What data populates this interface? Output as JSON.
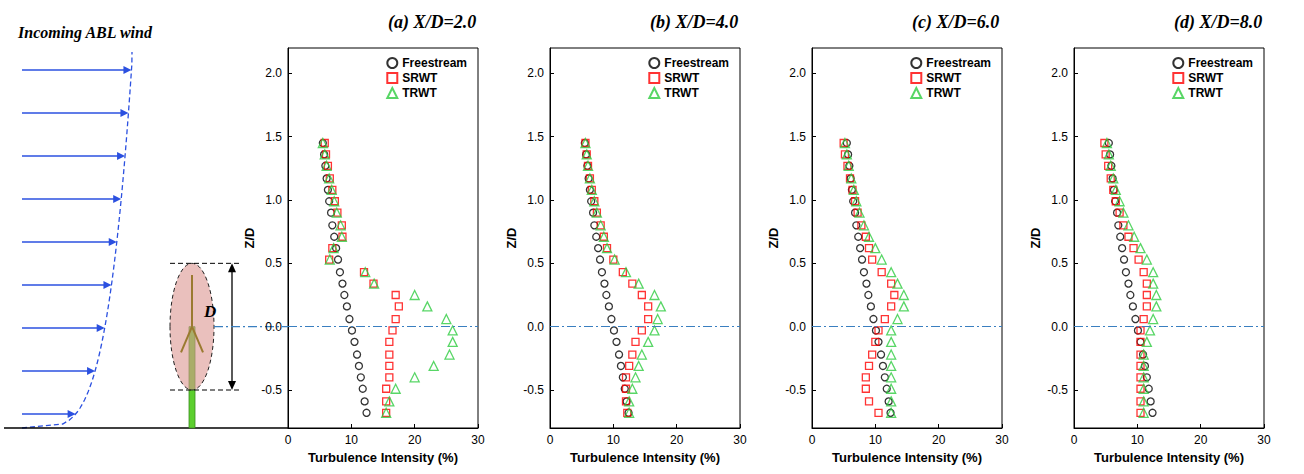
{
  "chart_data": [
    {
      "type": "scatter",
      "title": "(a) X/D=2.0",
      "x_label": "Turbulence Intensity (%)",
      "y_label": "Z/D",
      "xlim": [
        0,
        30
      ],
      "xticks": [
        0,
        10,
        20,
        30
      ],
      "ylim": [
        -0.8,
        2.2
      ],
      "yticks": [
        -0.5,
        {
          "value": 0,
          "label": "0.0"
        },
        0.5,
        {
          "value": 1,
          "label": "1.0"
        },
        1.5,
        {
          "value": 2,
          "label": "2.0"
        }
      ],
      "grid": false,
      "legend": "upper right",
      "hline": 0,
      "y": [
        1.45,
        1.36,
        1.27,
        1.17,
        1.08,
        0.99,
        0.9,
        0.8,
        0.71,
        0.62,
        0.53,
        0.43,
        0.34,
        0.25,
        0.16,
        0.06,
        -0.03,
        -0.12,
        -0.22,
        -0.31,
        -0.4,
        -0.49,
        -0.59,
        -0.68
      ],
      "series": [
        {
          "name": "Freestream",
          "color": "#000000",
          "marker": "circle",
          "x": [
            5.5,
            5.7,
            5.9,
            6.1,
            6.3,
            6.5,
            6.8,
            7.0,
            7.3,
            7.6,
            7.9,
            8.2,
            8.6,
            8.9,
            9.3,
            9.7,
            10.1,
            10.5,
            10.9,
            11.2,
            11.5,
            11.8,
            12.1,
            12.4
          ]
        },
        {
          "name": "SRWT",
          "color": "#ff0000",
          "marker": "square",
          "x": [
            5.8,
            6.0,
            6.3,
            6.6,
            7.0,
            7.4,
            7.8,
            8.5,
            8.6,
            7.0,
            6.5,
            12.0,
            13.5,
            17.0,
            17.5,
            17.0,
            16.5,
            16.0,
            16.0,
            16.0,
            16.0,
            15.5,
            15.5,
            15.5
          ]
        },
        {
          "name": "TRWT",
          "color": "#2ecc40",
          "marker": "triangle",
          "x": [
            5.5,
            5.8,
            6.1,
            6.5,
            6.9,
            7.3,
            7.7,
            8.3,
            8.5,
            7.2,
            6.6,
            12.2,
            13.6,
            20.0,
            22.0,
            25.0,
            26.0,
            26.0,
            25.5,
            23.0,
            20.0,
            17.0,
            16.0,
            15.5
          ]
        }
      ]
    },
    {
      "type": "scatter",
      "title": "(b) X/D=4.0",
      "x_label": "Turbulence Intensity (%)",
      "y_label": "Z/D",
      "xlim": [
        0,
        30
      ],
      "xticks": [
        0,
        10,
        20,
        30
      ],
      "ylim": [
        -0.8,
        2.2
      ],
      "yticks": [
        -0.5,
        {
          "value": 0,
          "label": "0.0"
        },
        0.5,
        {
          "value": 1,
          "label": "1.0"
        },
        1.5,
        {
          "value": 2,
          "label": "2.0"
        }
      ],
      "grid": false,
      "legend": "upper right",
      "hline": 0,
      "y": [
        1.45,
        1.36,
        1.27,
        1.17,
        1.08,
        0.99,
        0.9,
        0.8,
        0.71,
        0.62,
        0.53,
        0.43,
        0.34,
        0.25,
        0.16,
        0.06,
        -0.03,
        -0.12,
        -0.22,
        -0.31,
        -0.4,
        -0.49,
        -0.59,
        -0.68
      ],
      "series": [
        {
          "name": "Freestream",
          "color": "#000000",
          "marker": "circle",
          "x": [
            5.5,
            5.7,
            5.9,
            6.1,
            6.3,
            6.5,
            6.8,
            7.0,
            7.3,
            7.6,
            7.9,
            8.2,
            8.6,
            8.9,
            9.3,
            9.7,
            10.1,
            10.5,
            10.9,
            11.2,
            11.5,
            11.8,
            12.1,
            12.4
          ]
        },
        {
          "name": "SRWT",
          "color": "#ff0000",
          "marker": "square",
          "x": [
            5.6,
            5.8,
            6.0,
            6.3,
            6.6,
            7.0,
            7.4,
            8.0,
            8.5,
            9.0,
            10.0,
            11.5,
            13.0,
            14.5,
            15.5,
            15.5,
            14.5,
            13.5,
            13.0,
            12.5,
            12.0,
            12.0,
            12.0,
            12.2
          ]
        },
        {
          "name": "TRWT",
          "color": "#2ecc40",
          "marker": "triangle",
          "x": [
            5.6,
            5.8,
            6.0,
            6.3,
            6.6,
            7.0,
            7.4,
            8.0,
            8.5,
            9.0,
            10.2,
            12.0,
            14.0,
            16.5,
            17.5,
            17.0,
            16.5,
            15.5,
            14.5,
            14.0,
            13.5,
            13.0,
            12.5,
            12.5
          ]
        }
      ]
    },
    {
      "type": "scatter",
      "title": "(c) X/D=6.0",
      "x_label": "Turbulence Intensity (%)",
      "y_label": "Z/D",
      "xlim": [
        0,
        30
      ],
      "xticks": [
        0,
        10,
        20,
        30
      ],
      "ylim": [
        -0.8,
        2.2
      ],
      "yticks": [
        -0.5,
        {
          "value": 0,
          "label": "0.0"
        },
        0.5,
        {
          "value": 1,
          "label": "1.0"
        },
        1.5,
        {
          "value": 2,
          "label": "2.0"
        }
      ],
      "grid": false,
      "legend": "upper right",
      "hline": 0,
      "y": [
        1.45,
        1.36,
        1.27,
        1.17,
        1.08,
        0.99,
        0.9,
        0.8,
        0.71,
        0.62,
        0.53,
        0.43,
        0.34,
        0.25,
        0.16,
        0.06,
        -0.03,
        -0.12,
        -0.22,
        -0.31,
        -0.4,
        -0.49,
        -0.59,
        -0.68
      ],
      "series": [
        {
          "name": "Freestream",
          "color": "#000000",
          "marker": "circle",
          "x": [
            5.5,
            5.7,
            5.9,
            6.1,
            6.3,
            6.5,
            6.8,
            7.0,
            7.3,
            7.6,
            7.9,
            8.2,
            8.6,
            8.9,
            9.3,
            9.7,
            10.1,
            10.5,
            10.9,
            11.2,
            11.5,
            11.8,
            12.1,
            12.4
          ]
        },
        {
          "name": "SRWT",
          "color": "#ff0000",
          "marker": "square",
          "x": [
            5.0,
            5.2,
            5.6,
            6.0,
            6.4,
            6.8,
            7.2,
            7.8,
            8.5,
            9.0,
            9.5,
            11.0,
            12.5,
            13.0,
            12.5,
            11.5,
            10.5,
            10.0,
            9.5,
            9.0,
            8.5,
            8.5,
            9.0,
            10.5
          ]
        },
        {
          "name": "TRWT",
          "color": "#2ecc40",
          "marker": "triangle",
          "x": [
            5.2,
            5.5,
            5.8,
            6.2,
            6.6,
            7.0,
            7.5,
            8.2,
            9.0,
            10.0,
            11.0,
            12.5,
            13.5,
            14.5,
            14.5,
            13.5,
            12.5,
            12.5,
            12.5,
            12.5,
            12.5,
            12.5,
            12.5,
            12.5
          ]
        }
      ]
    },
    {
      "type": "scatter",
      "title": "(d) X/D=8.0",
      "x_label": "Turbulence Intensity (%)",
      "y_label": "Z/D",
      "xlim": [
        0,
        30
      ],
      "xticks": [
        0,
        10,
        20,
        30
      ],
      "ylim": [
        -0.8,
        2.2
      ],
      "yticks": [
        -0.5,
        {
          "value": 0,
          "label": "0.0"
        },
        0.5,
        {
          "value": 1,
          "label": "1.0"
        },
        1.5,
        {
          "value": 2,
          "label": "2.0"
        }
      ],
      "grid": false,
      "legend": "upper right",
      "hline": 0,
      "y": [
        1.45,
        1.36,
        1.27,
        1.17,
        1.08,
        0.99,
        0.9,
        0.8,
        0.71,
        0.62,
        0.53,
        0.43,
        0.34,
        0.25,
        0.16,
        0.06,
        -0.03,
        -0.12,
        -0.22,
        -0.31,
        -0.4,
        -0.49,
        -0.59,
        -0.68
      ],
      "series": [
        {
          "name": "Freestream",
          "color": "#000000",
          "marker": "circle",
          "x": [
            5.5,
            5.7,
            5.9,
            6.1,
            6.3,
            6.5,
            6.8,
            7.0,
            7.3,
            7.6,
            7.9,
            8.2,
            8.6,
            8.9,
            9.3,
            9.7,
            10.1,
            10.5,
            10.9,
            11.2,
            11.5,
            11.8,
            12.1,
            12.4
          ]
        },
        {
          "name": "SRWT",
          "color": "#ff0000",
          "marker": "square",
          "x": [
            4.8,
            5.0,
            5.4,
            5.8,
            6.2,
            6.6,
            7.2,
            7.8,
            8.6,
            9.4,
            10.2,
            11.0,
            11.5,
            11.5,
            11.5,
            11.0,
            10.5,
            10.5,
            10.5,
            10.5,
            10.5,
            10.5,
            10.5,
            10.5
          ]
        },
        {
          "name": "TRWT",
          "color": "#2ecc40",
          "marker": "triangle",
          "x": [
            5.2,
            5.5,
            5.8,
            6.2,
            6.6,
            7.2,
            7.8,
            8.6,
            9.5,
            10.5,
            11.5,
            12.5,
            12.5,
            13.0,
            13.0,
            12.5,
            12.0,
            11.5,
            11.0,
            11.0,
            11.0,
            11.0,
            11.0,
            11.0
          ]
        }
      ]
    }
  ],
  "schematic": {
    "label": "Incoming ABL wind",
    "dimension": "D"
  }
}
